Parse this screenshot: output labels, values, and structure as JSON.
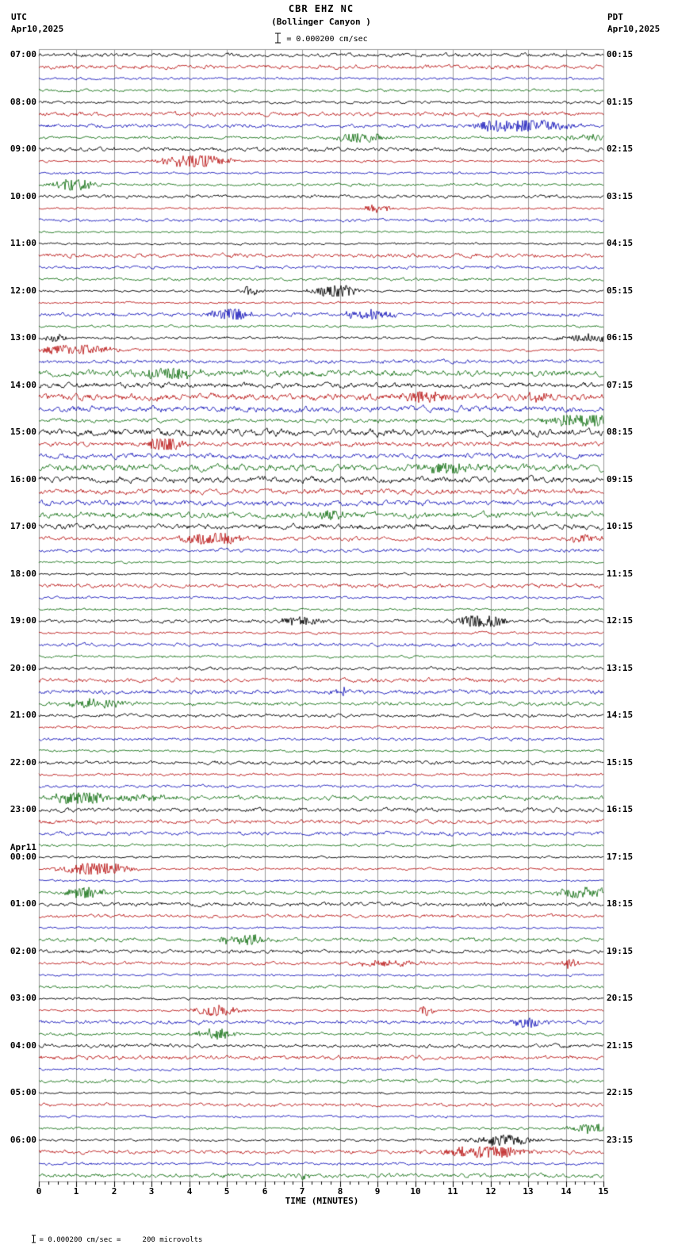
{
  "header": {
    "title": "CBR EHZ NC",
    "subtitle": "(Bollinger Canyon )",
    "scale_label": "= 0.000200 cm/sec",
    "left_tz": "UTC",
    "left_date": "Apr10,2025",
    "right_tz": "PDT",
    "right_date": "Apr10,2025"
  },
  "footer": {
    "xlabel": "TIME (MINUTES)",
    "scale_note": "= 0.000200 cm/sec =     200 microvolts"
  },
  "chart_data": {
    "type": "line",
    "subtype": "seismogram-helicorder",
    "station": "CBR EHZ NC",
    "location": "Bollinger Canyon",
    "title": "CBR EHZ NC (Bollinger Canyon )",
    "x_axis": {
      "label": "TIME (MINUTES)",
      "min": 0,
      "max": 15,
      "tick_labels": [
        "0",
        "1",
        "2",
        "3",
        "4",
        "5",
        "6",
        "7",
        "8",
        "9",
        "10",
        "11",
        "12",
        "13",
        "14",
        "15"
      ]
    },
    "rows": 96,
    "traces_per_hour": 4,
    "minutes_per_row": 15,
    "trace_color_cycle": [
      "#000000",
      "#b40000",
      "#0000b4",
      "#006400"
    ],
    "utc_hour_labels": [
      "07:00",
      "08:00",
      "09:00",
      "10:00",
      "11:00",
      "12:00",
      "13:00",
      "14:00",
      "15:00",
      "16:00",
      "17:00",
      "18:00",
      "19:00",
      "20:00",
      "21:00",
      "22:00",
      "23:00",
      "00:00",
      "01:00",
      "02:00",
      "03:00",
      "04:00",
      "05:00",
      "06:00"
    ],
    "utc_date_break": {
      "label": "Apr11",
      "before_hour": "00:00"
    },
    "pdt_hour_labels": [
      "00:15",
      "01:15",
      "02:15",
      "03:15",
      "04:15",
      "05:15",
      "06:15",
      "07:15",
      "08:15",
      "09:15",
      "10:15",
      "11:15",
      "12:15",
      "13:15",
      "14:15",
      "15:15",
      "16:15",
      "17:15",
      "18:15",
      "19:15",
      "20:15",
      "21:15",
      "22:15",
      "23:15"
    ],
    "amplitude_scale": "0.000200 cm/sec = 200 microvolts",
    "description": "24-hour helicorder record, 96 traces of 15 minutes each, trace colors cycling black/red/blue/green, background seismic noise with occasional small bursts"
  }
}
